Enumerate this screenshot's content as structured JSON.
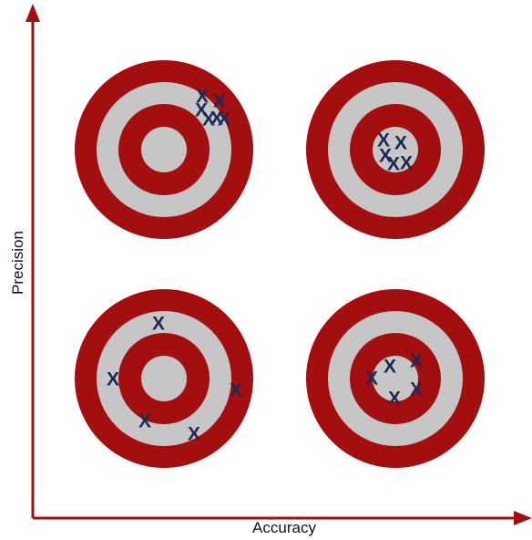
{
  "axes": {
    "x_label": "Accuracy",
    "y_label": "Precision",
    "axis_color": "#a30e0e"
  },
  "target_colors": {
    "ring_red": "#a30e0e",
    "ring_gray": "#c6c6c6",
    "mark": "#1b2a55"
  },
  "mark_glyph": "X",
  "targets": [
    {
      "name": "target-top-left"
    },
    {
      "name": "target-top-right"
    },
    {
      "name": "target-bottom-left"
    },
    {
      "name": "target-bottom-right"
    }
  ]
}
